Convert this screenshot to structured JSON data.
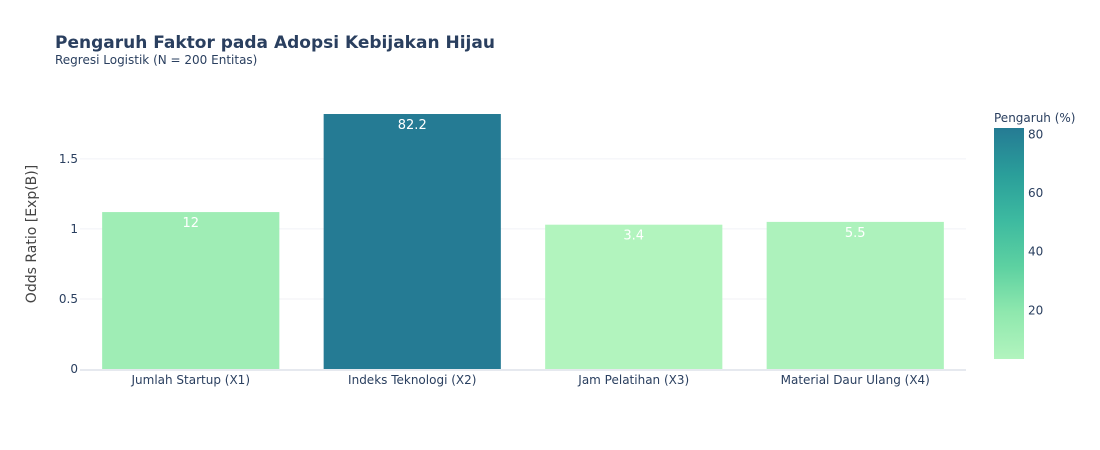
{
  "chart_data": {
    "type": "bar",
    "title": "Pengaruh Faktor pada Adopsi Kebijakan Hijau",
    "subtitle": "Regresi Logistik (N = 200 Entitas)",
    "xlabel": "",
    "ylabel": "Odds Ratio [Exp(B)]",
    "ylim": [
      0,
      1.92
    ],
    "yticks": [
      0,
      0.5,
      1,
      1.5
    ],
    "ytick_labels": [
      "0",
      "0.5",
      "1",
      "1.5"
    ],
    "categories": [
      "Jumlah Startup (X1)",
      "Indeks Teknologi (X2)",
      "Jam Pelatihan (X3)",
      "Material Daur Ulang (X4)"
    ],
    "values": [
      1.12,
      1.82,
      1.03,
      1.05
    ],
    "influence_pct": [
      12,
      82.2,
      3.4,
      5.5
    ],
    "bar_labels": [
      "12",
      "82.2",
      "3.4",
      "5.5"
    ],
    "grid": true,
    "colorbar": {
      "title": "Pengaruh (%)",
      "min": 3.4,
      "max": 82.2,
      "ticks": [
        20,
        40,
        60,
        80
      ],
      "tick_labels": [
        "20",
        "40",
        "60",
        "80"
      ],
      "colorscale": [
        "#b2f4be",
        "#8fe8ae",
        "#5dd1a1",
        "#3dbaa0",
        "#2a9e9a",
        "#257b94"
      ]
    }
  }
}
